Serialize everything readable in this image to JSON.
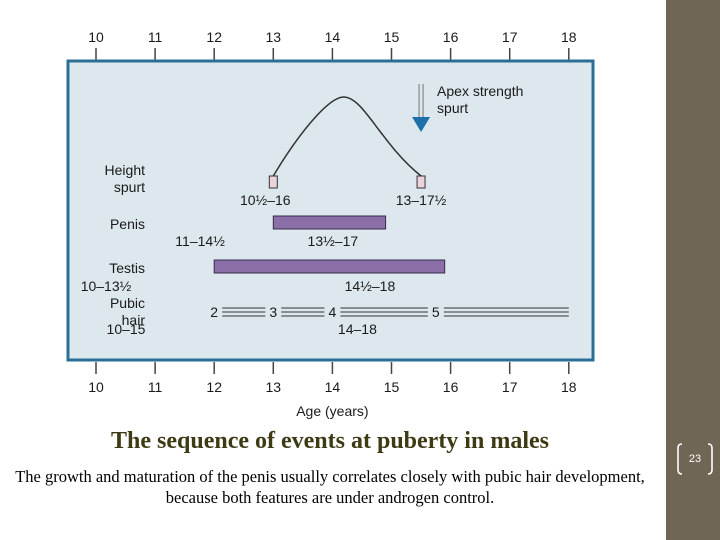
{
  "slide": {
    "title": "The sequence of events at puberty in males",
    "body": "The growth and maturation of the penis usually correlates closely with pubic hair development, because both features are under androgen control.",
    "page_number": "23"
  },
  "colors": {
    "sidebar": "#6f6655",
    "panel_bg": "#dce8ed",
    "panel_border": "#2b6f96",
    "bar_fill": "#8b6fa8",
    "arrow": "#1f6fa8",
    "title_text": "#3d3a14"
  },
  "chart_data": {
    "type": "timeline",
    "x_axis": {
      "label": "Age (years)",
      "range": [
        10,
        18
      ],
      "ticks": [
        "10",
        "11",
        "12",
        "13",
        "14",
        "15",
        "16",
        "17",
        "18"
      ]
    },
    "rows": [
      {
        "name": "Height spurt",
        "label": "Height\nspurt",
        "curve": {
          "start": 13,
          "peak": 14.2,
          "end": 15.5
        },
        "onset_range": {
          "text": "10½–16",
          "from": 10.5,
          "to": 16
        },
        "end_range": {
          "text": "13–17½",
          "from": 13,
          "to": 17.5
        },
        "annotation": "Apex strength\nspurt",
        "apex_age": 15.5
      },
      {
        "name": "Penis",
        "label": "Penis",
        "bar": {
          "start": 13,
          "end": 14.9
        },
        "onset_range": {
          "text": "11–14½",
          "from": 11,
          "to": 14.5
        },
        "end_range": {
          "text": "13½–17",
          "from": 13.5,
          "to": 17
        }
      },
      {
        "name": "Testis",
        "label": "Testis",
        "bar": {
          "start": 12,
          "end": 15.9
        },
        "onset_range": {
          "text": "10–13½",
          "from": 10,
          "to": 13.5
        },
        "end_range": {
          "text": "14½–18",
          "from": 14.5,
          "to": 18
        }
      },
      {
        "name": "Pubic hair",
        "label": "Pubic\nhair",
        "stages": [
          {
            "label": "2",
            "age": 12
          },
          {
            "label": "3",
            "age": 13
          },
          {
            "label": "4",
            "age": 14
          },
          {
            "label": "5",
            "age": 15.75
          }
        ],
        "end": 18,
        "onset_range": {
          "text": "10–15",
          "from": 10,
          "to": 15
        },
        "end_range": {
          "text": "14–18",
          "from": 14,
          "to": 18
        }
      }
    ]
  }
}
